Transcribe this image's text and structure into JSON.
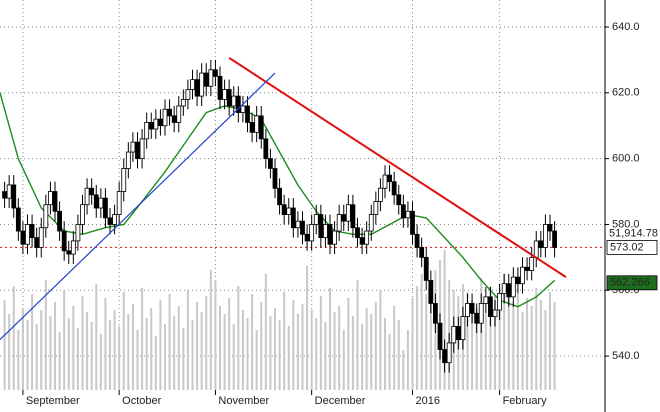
{
  "chart_data": {
    "type": "candlestick",
    "xlim": [
      -1,
      131
    ],
    "ylim": [
      529.7,
      648.2
    ],
    "xticks": [
      {
        "value": 4,
        "label": "September"
      },
      {
        "value": 25,
        "label": "October"
      },
      {
        "value": 46,
        "label": "November"
      },
      {
        "value": 67,
        "label": "December"
      },
      {
        "value": 89,
        "label": "2016"
      },
      {
        "value": 108,
        "label": "February"
      }
    ],
    "yticks": [
      {
        "value": 540,
        "label": "540.0"
      },
      {
        "value": 560,
        "label": "560.0"
      },
      {
        "value": 580,
        "label": "580.0"
      },
      {
        "value": 600,
        "label": "600.0"
      },
      {
        "value": 620,
        "label": "620.0"
      },
      {
        "value": 640,
        "label": "640.0"
      }
    ],
    "grid": true,
    "open": [
      590,
      588,
      592,
      585,
      578,
      574,
      580,
      576,
      573,
      579,
      586,
      590,
      584,
      578,
      572,
      571,
      575,
      580,
      586,
      591,
      589,
      585,
      588,
      582,
      580,
      583,
      590,
      597,
      602,
      605,
      600,
      606,
      611,
      609,
      612,
      610,
      615,
      613,
      611,
      616,
      618,
      621,
      624,
      619,
      626,
      622,
      627,
      625,
      618,
      621,
      616,
      619,
      614,
      616,
      611,
      608,
      613,
      606,
      600,
      597,
      591,
      586,
      583,
      585,
      579,
      581,
      577,
      575,
      580,
      583,
      576,
      580,
      574,
      578,
      583,
      581,
      586,
      579,
      576,
      574,
      578,
      583,
      587,
      591,
      595,
      593,
      589,
      586,
      582,
      584,
      577,
      573,
      570,
      563,
      556,
      550,
      542,
      538,
      544,
      549,
      545,
      552,
      556,
      553,
      550,
      556,
      558,
      552,
      554,
      559,
      562,
      558,
      564,
      562,
      567,
      566,
      570,
      575,
      573,
      580,
      578
    ],
    "high": [
      593,
      595,
      595,
      588,
      581,
      583,
      583,
      579,
      582,
      589,
      593,
      593,
      587,
      581,
      575,
      578,
      583,
      589,
      594,
      594,
      592,
      591,
      591,
      585,
      586,
      593,
      600,
      605,
      608,
      608,
      609,
      614,
      614,
      615,
      615,
      618,
      618,
      616,
      619,
      621,
      624,
      627,
      627,
      629,
      629,
      630,
      630,
      628,
      624,
      624,
      622,
      622,
      619,
      619,
      614,
      616,
      616,
      609,
      603,
      600,
      594,
      589,
      588,
      588,
      584,
      584,
      580,
      583,
      586,
      586,
      583,
      583,
      581,
      586,
      586,
      589,
      589,
      582,
      579,
      581,
      586,
      590,
      594,
      598,
      598,
      596,
      592,
      589,
      587,
      587,
      580,
      576,
      573,
      566,
      559,
      553,
      545,
      547,
      552,
      552,
      555,
      559,
      559,
      556,
      559,
      561,
      561,
      557,
      562,
      565,
      565,
      567,
      567,
      570,
      570,
      573,
      578,
      578,
      583,
      583,
      581
    ],
    "low": [
      585,
      585,
      582,
      575,
      571,
      571,
      573,
      570,
      570,
      576,
      583,
      581,
      575,
      569,
      568,
      568,
      572,
      577,
      583,
      586,
      582,
      582,
      579,
      577,
      577,
      580,
      587,
      594,
      599,
      597,
      597,
      603,
      606,
      606,
      607,
      607,
      610,
      608,
      608,
      613,
      615,
      618,
      616,
      616,
      619,
      619,
      622,
      615,
      615,
      613,
      613,
      611,
      611,
      608,
      605,
      605,
      603,
      597,
      594,
      588,
      583,
      580,
      580,
      576,
      576,
      574,
      572,
      572,
      577,
      573,
      573,
      571,
      571,
      575,
      578,
      578,
      576,
      573,
      571,
      571,
      575,
      580,
      584,
      588,
      590,
      586,
      583,
      579,
      579,
      574,
      570,
      567,
      560,
      553,
      547,
      539,
      535,
      535,
      541,
      542,
      542,
      549,
      550,
      547,
      547,
      553,
      549,
      549,
      551,
      556,
      555,
      555,
      559,
      559,
      563,
      563,
      567,
      570,
      570,
      575,
      570
    ],
    "close": [
      588,
      592,
      585,
      578,
      574,
      580,
      576,
      573,
      579,
      586,
      590,
      584,
      578,
      572,
      571,
      575,
      580,
      586,
      591,
      589,
      585,
      588,
      582,
      580,
      583,
      590,
      597,
      602,
      605,
      600,
      606,
      611,
      609,
      612,
      610,
      615,
      613,
      611,
      616,
      618,
      621,
      624,
      619,
      626,
      622,
      627,
      625,
      618,
      621,
      616,
      619,
      614,
      616,
      611,
      608,
      613,
      606,
      600,
      597,
      591,
      586,
      583,
      585,
      579,
      581,
      577,
      575,
      580,
      583,
      576,
      580,
      574,
      578,
      583,
      581,
      586,
      579,
      576,
      574,
      578,
      583,
      587,
      591,
      595,
      593,
      589,
      586,
      582,
      584,
      577,
      573,
      570,
      563,
      556,
      550,
      542,
      538,
      544,
      549,
      545,
      552,
      556,
      553,
      550,
      556,
      558,
      552,
      554,
      559,
      562,
      558,
      564,
      562,
      567,
      566,
      570,
      575,
      573,
      580,
      578,
      573
    ],
    "volume": [
      45,
      38,
      52,
      30,
      41,
      35,
      48,
      33,
      40,
      55,
      37,
      44,
      29,
      50,
      36,
      42,
      31,
      47,
      39,
      34,
      53,
      28,
      46,
      35,
      40,
      32,
      49,
      38,
      43,
      30,
      51,
      36,
      41,
      27,
      45,
      33,
      48,
      37,
      42,
      31,
      50,
      35,
      44,
      39,
      47,
      60,
      55,
      42,
      38,
      46,
      33,
      52,
      40,
      36,
      48,
      30,
      44,
      58,
      37,
      41,
      35,
      49,
      32,
      45,
      38,
      43,
      62,
      40,
      36,
      47,
      34,
      51,
      39,
      42,
      30,
      46,
      37,
      55,
      33,
      41,
      38,
      44,
      50,
      36,
      28,
      42,
      35,
      20,
      30,
      46,
      52,
      58,
      48,
      44,
      60,
      65,
      70,
      55,
      50,
      47,
      53,
      49,
      45,
      41,
      56,
      38,
      52,
      47,
      43,
      58,
      50,
      44,
      48,
      39,
      46,
      42,
      51,
      45,
      40,
      49,
      44
    ],
    "volume_lim": [
      0,
      100
    ],
    "moving_average": {
      "color": "#1e8c1e",
      "x": [
        -1,
        3,
        8,
        13,
        17,
        22,
        26,
        30,
        35,
        40,
        44,
        48,
        52,
        56,
        60,
        64,
        68,
        72,
        76,
        80,
        84,
        88,
        92,
        96,
        100,
        104,
        108,
        112,
        116,
        120
      ],
      "values": [
        620,
        600,
        585,
        578,
        577,
        579,
        580,
        587,
        596,
        606,
        614,
        616,
        615,
        612,
        602,
        592,
        584,
        578,
        577,
        577,
        580,
        583,
        582,
        576,
        570,
        563,
        557,
        555,
        558,
        563
      ]
    },
    "trendlines": [
      {
        "color": "#e01010",
        "x": [
          49,
          122.5
        ],
        "values": [
          630.6,
          564
        ]
      },
      {
        "color": "#2040d0",
        "x": [
          -1,
          59
        ],
        "values": [
          545,
          626
        ]
      }
    ],
    "level": {
      "value": 573.02,
      "color": "#e01010"
    },
    "markers": [
      {
        "value": 573.02,
        "color": "#ffffff",
        "text_color": "#000000"
      },
      {
        "value": 562.266,
        "color": "#1e6e1e",
        "text_color": "#ffffff"
      }
    ],
    "extra_label": {
      "value": 51914.78,
      "label": "51,914.78"
    }
  }
}
